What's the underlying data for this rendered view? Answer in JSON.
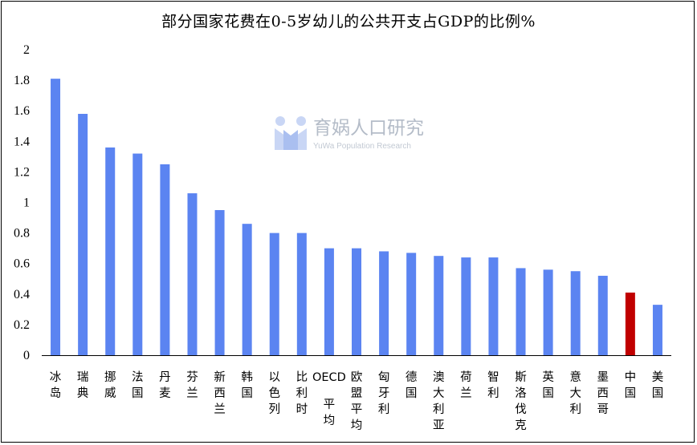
{
  "colors": {
    "bar": "#5b84f1",
    "highlight": "#c00000",
    "axis": "#000000",
    "watermark": "#b4bcc8",
    "logo_light": "#c9d6f5"
  },
  "watermark": {
    "icon": "yuwa-logo-icon",
    "cn": "育娲人口研究",
    "en": "YuWa Population Research"
  },
  "chart_data": {
    "type": "bar",
    "title": "部分国家花费在0-5岁幼儿的公共开支占GDP的比例%",
    "xlabel": "",
    "ylabel": "",
    "ylim": [
      0,
      2
    ],
    "yticks": [
      "0",
      "0.2",
      "0.4",
      "0.6",
      "0.8",
      "1",
      "1.2",
      "1.4",
      "1.6",
      "1.8",
      "2"
    ],
    "grid": false,
    "highlight_category": "中国",
    "categories": [
      "冰岛",
      "瑞典",
      "挪威",
      "法国",
      "丹麦",
      "芬兰",
      "新西兰",
      "韩国",
      "以色列",
      "比利时",
      "OECD 平均",
      "欧盟平均",
      "匈牙利",
      "德国",
      "澳大利亚",
      "荷兰",
      "智利",
      "斯洛伐克",
      "英国",
      "意大利",
      "墨西哥",
      "中国",
      "美国"
    ],
    "values": [
      1.81,
      1.58,
      1.36,
      1.32,
      1.25,
      1.06,
      0.95,
      0.86,
      0.8,
      0.8,
      0.7,
      0.7,
      0.68,
      0.67,
      0.65,
      0.64,
      0.64,
      0.57,
      0.56,
      0.55,
      0.52,
      0.41,
      0.33
    ]
  }
}
